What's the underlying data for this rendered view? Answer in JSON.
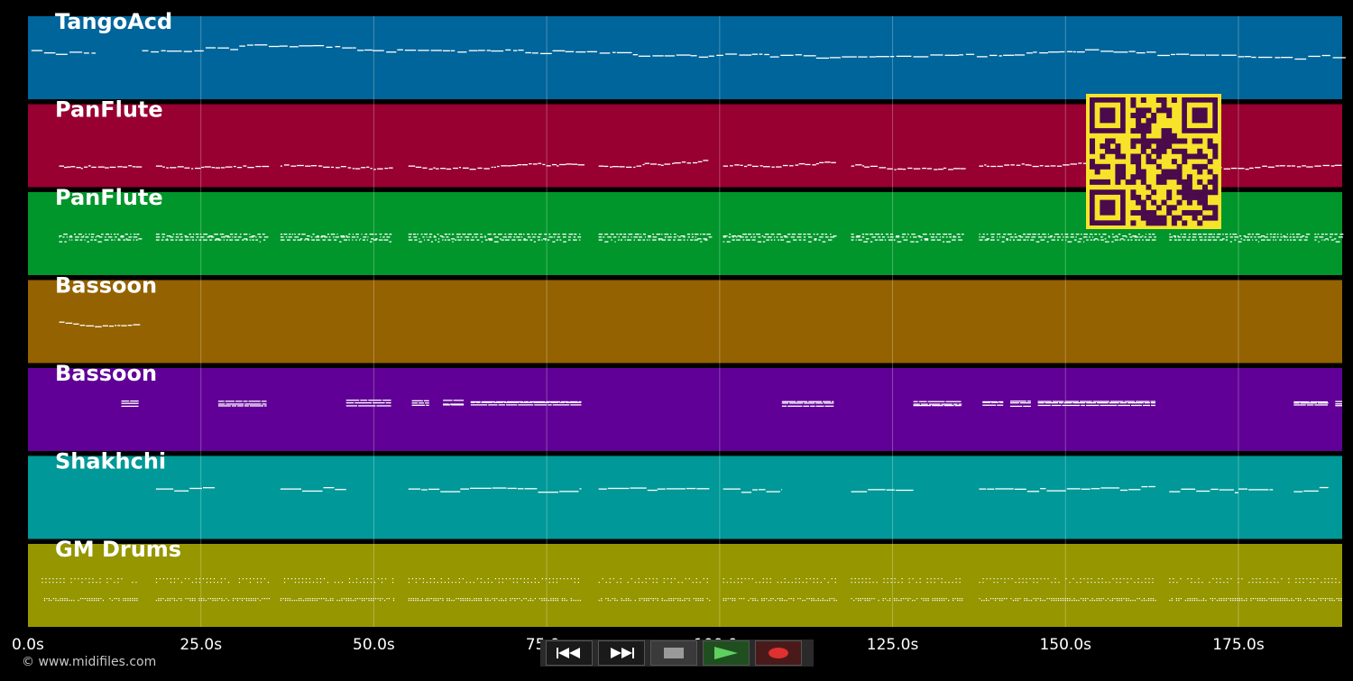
{
  "tracks": [
    {
      "name": "TangoAcd",
      "color": "#00659a"
    },
    {
      "name": "PanFlute",
      "color": "#970031"
    },
    {
      "name": "PanFlute",
      "color": "#00962b"
    },
    {
      "name": "Bassoon",
      "color": "#946200"
    },
    {
      "name": "Bassoon",
      "color": "#600096"
    },
    {
      "name": "Shakhchi",
      "color": "#009898"
    },
    {
      "name": "GM Drums",
      "color": "#969600"
    }
  ],
  "time_axis": {
    "unit": "s",
    "ticks": [
      "0.0s",
      "25.0s",
      "50.0s",
      "75.0s",
      "100.0s",
      "125.0s",
      "150.0s",
      "175.0s"
    ],
    "range": [
      0,
      190
    ]
  },
  "note_color": "#ffffff",
  "copyright": "© www.midifiles.com",
  "controls": [
    {
      "name": "rewind",
      "icon": "rewind-icon",
      "color": "#1a1a1a"
    },
    {
      "name": "fast-forward",
      "icon": "fast-forward-icon",
      "color": "#1a1a1a"
    },
    {
      "name": "stop",
      "icon": "stop-icon",
      "color": "#3a3a3a"
    },
    {
      "name": "play",
      "icon": "play-icon",
      "color": "#1f4f1f"
    },
    {
      "name": "record",
      "icon": "record-icon",
      "color": "#4a1a1a"
    }
  ],
  "qr_colors": {
    "fg": "#4b0a4b",
    "bg": "#f6e32a"
  }
}
